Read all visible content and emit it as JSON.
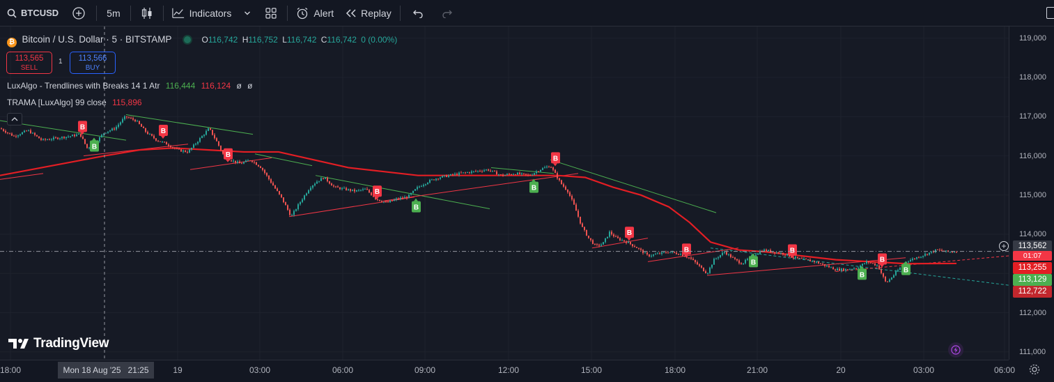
{
  "toolbar": {
    "symbol": "BTCUSD",
    "interval": "5m",
    "indicators_label": "Indicators",
    "alert_label": "Alert",
    "replay_label": "Replay"
  },
  "legend": {
    "title": "Bitcoin / U.S. Dollar · 5 · BITSTAMP",
    "o_label": "O",
    "o_value": "116,742",
    "h_label": "H",
    "h_value": "116,752",
    "l_label": "L",
    "l_value": "116,742",
    "c_label": "C",
    "c_value": "116,742",
    "change": "0 (0.00%)",
    "sell_price": "113,565",
    "sell_label": "SELL",
    "spread": "1",
    "buy_price": "113,566",
    "buy_label": "BUY",
    "ind1_name": "LuxAlgo - Trendlines with Breaks 14 1 Atr",
    "ind1_v1": "116,444",
    "ind1_v2": "116,124",
    "ind1_v3": "ø",
    "ind1_v4": "ø",
    "ind2_name": "TRAMA [LuxAlgo] 99 close",
    "ind2_v1": "115,896"
  },
  "yaxis": {
    "ticks": [
      "119,000",
      "118,000",
      "117,000",
      "116,000",
      "115,000",
      "114,000",
      "113,000",
      "112,000",
      "111,000"
    ],
    "tags": {
      "last_price": "113,562",
      "countdown": "01:07",
      "trama": "113,255",
      "upper": "113,129",
      "lower": "112,722"
    }
  },
  "xaxis": {
    "ticks": [
      "18:00",
      "19",
      "03:00",
      "06:00",
      "09:00",
      "12:00",
      "15:00",
      "18:00",
      "21:00",
      "20",
      "03:00",
      "06:00"
    ],
    "crosshair_label": "Mon 18 Aug '25   21:25"
  },
  "watermark": "TradingView",
  "signal_labels": {
    "break_up": "B",
    "break_down": "B"
  },
  "colors": {
    "background": "#161a25",
    "up": "#26a69a",
    "down": "#ef5350",
    "trama": "#e31e24",
    "upper_trend": "#4caf50",
    "lower_trend": "#f23645",
    "green_tag": "#4caf50",
    "red_tag": "#f23645"
  },
  "chart_data": {
    "type": "candlestick",
    "symbol": "BTCUSD",
    "exchange": "BITSTAMP",
    "timeframe": "5",
    "ylim": [
      110800,
      119300
    ],
    "last_price": 113562,
    "close_path": [
      [
        0,
        116700
      ],
      [
        20,
        116500
      ],
      [
        40,
        116650
      ],
      [
        60,
        116400
      ],
      [
        80,
        116450
      ],
      [
        100,
        116500
      ],
      [
        115,
        116550
      ],
      [
        125,
        116200
      ],
      [
        135,
        116300
      ],
      [
        150,
        116600
      ],
      [
        165,
        116700
      ],
      [
        180,
        117000
      ],
      [
        195,
        116900
      ],
      [
        210,
        116600
      ],
      [
        225,
        116400
      ],
      [
        240,
        116300
      ],
      [
        255,
        116150
      ],
      [
        270,
        116100
      ],
      [
        280,
        116300
      ],
      [
        290,
        116500
      ],
      [
        300,
        116700
      ],
      [
        310,
        116400
      ],
      [
        320,
        116050
      ],
      [
        330,
        115900
      ],
      [
        345,
        115800
      ],
      [
        360,
        115900
      ],
      [
        375,
        115700
      ],
      [
        390,
        115300
      ],
      [
        405,
        114900
      ],
      [
        418,
        114450
      ],
      [
        430,
        114800
      ],
      [
        445,
        115200
      ],
      [
        455,
        115350
      ],
      [
        465,
        115450
      ],
      [
        480,
        115200
      ],
      [
        495,
        115150
      ],
      [
        510,
        115100
      ],
      [
        525,
        115150
      ],
      [
        540,
        114900
      ],
      [
        555,
        114800
      ],
      [
        570,
        114900
      ],
      [
        585,
        114950
      ],
      [
        600,
        115200
      ],
      [
        615,
        115350
      ],
      [
        630,
        115450
      ],
      [
        645,
        115500
      ],
      [
        660,
        115550
      ],
      [
        680,
        115600
      ],
      [
        700,
        115650
      ],
      [
        720,
        115500
      ],
      [
        740,
        115550
      ],
      [
        760,
        115500
      ],
      [
        775,
        115650
      ],
      [
        790,
        115750
      ],
      [
        805,
        115300
      ],
      [
        815,
        115100
      ],
      [
        825,
        114700
      ],
      [
        835,
        114200
      ],
      [
        845,
        113900
      ],
      [
        855,
        113700
      ],
      [
        865,
        113750
      ],
      [
        875,
        114050
      ],
      [
        885,
        113900
      ],
      [
        900,
        113800
      ],
      [
        915,
        113650
      ],
      [
        930,
        113450
      ],
      [
        945,
        113500
      ],
      [
        960,
        113550
      ],
      [
        975,
        113500
      ],
      [
        990,
        113400
      ],
      [
        1000,
        113250
      ],
      [
        1015,
        113000
      ],
      [
        1025,
        113350
      ],
      [
        1040,
        113550
      ],
      [
        1055,
        113350
      ],
      [
        1065,
        113250
      ],
      [
        1080,
        113450
      ],
      [
        1095,
        113600
      ],
      [
        1110,
        113550
      ],
      [
        1125,
        113500
      ],
      [
        1140,
        113400
      ],
      [
        1155,
        113350
      ],
      [
        1170,
        113300
      ],
      [
        1185,
        113200
      ],
      [
        1200,
        113100
      ],
      [
        1215,
        113100
      ],
      [
        1230,
        113150
      ],
      [
        1245,
        113300
      ],
      [
        1260,
        113200
      ],
      [
        1272,
        112750
      ],
      [
        1285,
        113000
      ],
      [
        1300,
        113300
      ],
      [
        1315,
        113400
      ],
      [
        1330,
        113500
      ],
      [
        1345,
        113600
      ],
      [
        1360,
        113550
      ],
      [
        1373,
        113562
      ]
    ],
    "trama_path": [
      [
        0,
        115500
      ],
      [
        60,
        115700
      ],
      [
        120,
        115900
      ],
      [
        150,
        116000
      ],
      [
        200,
        116150
      ],
      [
        250,
        116200
      ],
      [
        300,
        116150
      ],
      [
        350,
        116100
      ],
      [
        400,
        116100
      ],
      [
        450,
        115900
      ],
      [
        500,
        115700
      ],
      [
        550,
        115600
      ],
      [
        600,
        115500
      ],
      [
        650,
        115500
      ],
      [
        700,
        115500
      ],
      [
        750,
        115500
      ],
      [
        800,
        115500
      ],
      [
        840,
        115450
      ],
      [
        880,
        115200
      ],
      [
        920,
        115000
      ],
      [
        960,
        114700
      ],
      [
        990,
        114300
      ],
      [
        1020,
        113800
      ],
      [
        1060,
        113600
      ],
      [
        1100,
        113550
      ],
      [
        1150,
        113450
      ],
      [
        1200,
        113350
      ],
      [
        1250,
        113300
      ],
      [
        1300,
        113250
      ],
      [
        1373,
        113255
      ]
    ],
    "upper_trendlines": [
      [
        [
          0,
          116900
        ],
        [
          181,
          116400
        ]
      ],
      [
        [
          181,
          117050
        ],
        [
          363,
          116550
        ]
      ],
      [
        [
          366,
          116050
        ],
        [
          448,
          115750
        ]
      ],
      [
        [
          453,
          115500
        ],
        [
          703,
          114650
        ]
      ],
      [
        [
          705,
          115700
        ],
        [
          795,
          115550
        ]
      ],
      [
        [
          790,
          115900
        ],
        [
          1028,
          114550
        ]
      ],
      [
        [
          1020,
          113650
        ],
        [
          1448,
          112700
        ]
      ]
    ],
    "lower_trendlines": [
      [
        [
          0,
          115400
        ],
        [
          62,
          115550
        ]
      ],
      [
        [
          120,
          116000
        ],
        [
          270,
          116300
        ]
      ],
      [
        [
          273,
          115650
        ],
        [
          390,
          115950
        ]
      ],
      [
        [
          415,
          114450
        ],
        [
          595,
          114950
        ]
      ],
      [
        [
          550,
          114850
        ],
        [
          830,
          115550
        ]
      ],
      [
        [
          850,
          113650
        ],
        [
          930,
          113900
        ]
      ],
      [
        [
          930,
          113300
        ],
        [
          1060,
          113650
        ]
      ],
      [
        [
          1015,
          112950
        ],
        [
          1300,
          113400
        ]
      ],
      [
        [
          1200,
          113050
        ],
        [
          1448,
          113450
        ]
      ]
    ],
    "signals": [
      {
        "type": "break_up",
        "x": 118,
        "price": 116750,
        "label": "B"
      },
      {
        "type": "break_down",
        "x": 135,
        "price": 116250,
        "label": "B"
      },
      {
        "type": "break_up",
        "x": 234,
        "price": 116650,
        "label": "B"
      },
      {
        "type": "break_up",
        "x": 327,
        "price": 116050,
        "label": "B"
      },
      {
        "type": "break_up",
        "x": 541,
        "price": 115100,
        "label": "B"
      },
      {
        "type": "break_down",
        "x": 597,
        "price": 114700,
        "label": "B"
      },
      {
        "type": "break_down",
        "x": 766,
        "price": 115200,
        "label": "B"
      },
      {
        "type": "break_up",
        "x": 797,
        "price": 115950,
        "label": "B"
      },
      {
        "type": "break_up",
        "x": 903,
        "price": 114050,
        "label": "B"
      },
      {
        "type": "break_up",
        "x": 985,
        "price": 113620,
        "label": "B"
      },
      {
        "type": "break_down",
        "x": 1081,
        "price": 113300,
        "label": "B"
      },
      {
        "type": "break_up",
        "x": 1137,
        "price": 113600,
        "label": "B"
      },
      {
        "type": "break_down",
        "x": 1237,
        "price": 112980,
        "label": "B"
      },
      {
        "type": "break_up",
        "x": 1266,
        "price": 113370,
        "label": "B"
      },
      {
        "type": "break_down",
        "x": 1300,
        "price": 113100,
        "label": "B"
      }
    ]
  }
}
